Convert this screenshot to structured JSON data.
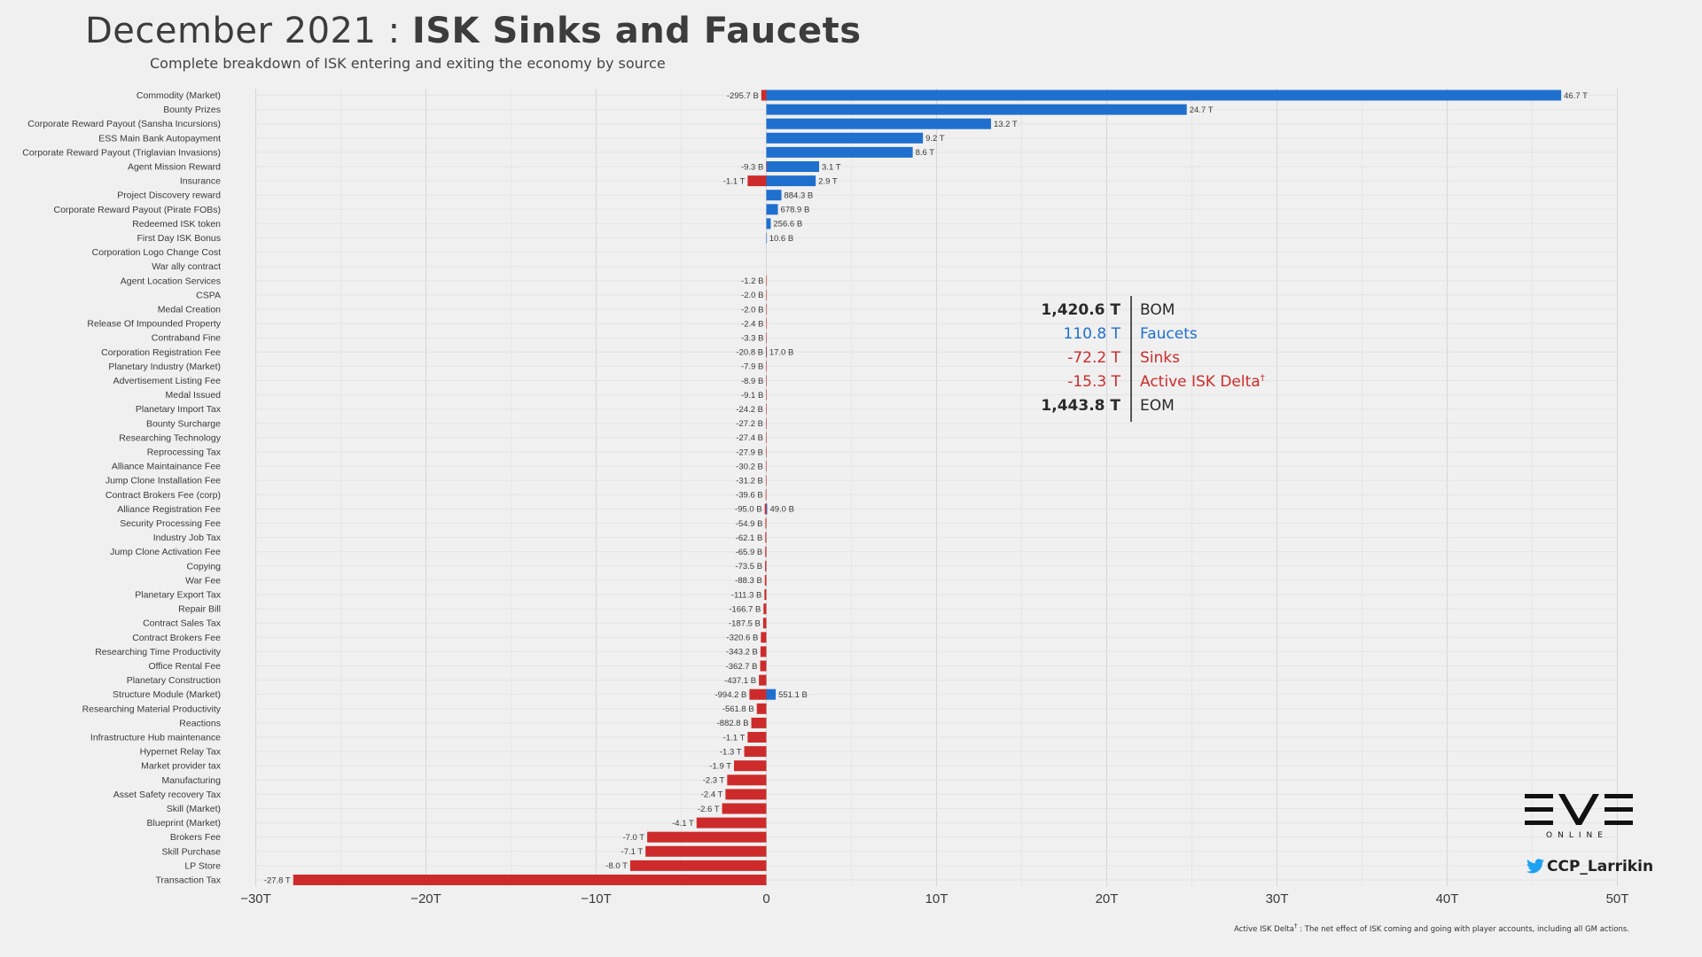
{
  "title": {
    "prefix": "December 2021 : ",
    "bold": "ISK Sinks and Faucets"
  },
  "subtitle": "Complete breakdown of ISK entering and exiting the economy by source",
  "colors": {
    "faucet": "#1f6fcf",
    "sink": "#cd2b2b",
    "text": "#3a3a3a",
    "grid": "#dcdcdc",
    "background": "#f0f0f0"
  },
  "chart_data": {
    "type": "bar",
    "orientation": "horizontal",
    "title": "December 2021 : ISK Sinks and Faucets",
    "subtitle": "Complete breakdown of ISK entering and exiting the economy by source",
    "xlabel": "",
    "ylabel": "",
    "xlim": [
      -30,
      50
    ],
    "units": "T ISK",
    "x_ticks": [
      -30,
      -20,
      -10,
      0,
      10,
      20,
      30,
      40,
      50
    ],
    "x_tick_labels": [
      "−30T",
      "−20T",
      "−10T",
      "0",
      "10T",
      "20T",
      "30T",
      "40T",
      "50T"
    ],
    "categories": [
      "Commodity (Market)",
      "Bounty Prizes",
      "Corporate Reward Payout (Sansha Incursions)",
      "ESS Main Bank Autopayment",
      "Corporate Reward Payout (Triglavian Invasions)",
      "Agent Mission Reward",
      "Insurance",
      "Project Discovery reward",
      "Corporate Reward Payout (Pirate FOBs)",
      "Redeemed ISK token",
      "First Day ISK Bonus",
      "Corporation Logo Change Cost",
      "War ally contract",
      "Agent Location Services",
      "CSPA",
      "Medal Creation",
      "Release Of Impounded Property",
      "Contraband Fine",
      "Corporation Registration Fee",
      "Planetary Industry (Market)",
      "Advertisement Listing Fee",
      "Medal Issued",
      "Planetary Import Tax",
      "Bounty Surcharge",
      "Researching Technology",
      "Reprocessing Tax",
      "Alliance Maintainance Fee",
      "Jump Clone Installation Fee",
      "Contract Brokers Fee (corp)",
      "Alliance Registration Fee",
      "Security Processing Fee",
      "Industry Job Tax",
      "Jump Clone Activation Fee",
      "Copying",
      "War Fee",
      "Planetary Export Tax",
      "Repair Bill",
      "Contract Sales Tax",
      "Contract Brokers Fee",
      "Researching Time Productivity",
      "Office Rental Fee",
      "Planetary Construction",
      "Structure Module (Market)",
      "Researching Material Productivity",
      "Reactions",
      "Infrastructure Hub maintenance",
      "Hypernet Relay Tax",
      "Market provider tax",
      "Manufacturing",
      "Asset Safety recovery Tax",
      "Skill (Market)",
      "Blueprint (Market)",
      "Brokers Fee",
      "Skill Purchase",
      "LP Store",
      "Transaction Tax"
    ],
    "series": [
      {
        "name": "Faucets",
        "color": "#1f6fcf",
        "values": [
          46.7,
          24.7,
          13.2,
          9.2,
          8.6,
          3.1,
          2.9,
          0.8843,
          0.6789,
          0.2566,
          0.0106,
          null,
          null,
          null,
          null,
          null,
          null,
          null,
          0.017,
          null,
          null,
          null,
          null,
          null,
          null,
          null,
          null,
          null,
          null,
          0.049,
          null,
          null,
          null,
          null,
          null,
          null,
          null,
          null,
          null,
          null,
          null,
          null,
          0.5511,
          null,
          null,
          null,
          null,
          null,
          null,
          null,
          null,
          null,
          null,
          null,
          null,
          null
        ],
        "labels": [
          "46.7 T",
          "24.7 T",
          "13.2 T",
          "9.2 T",
          "8.6 T",
          "3.1 T",
          "2.9 T",
          "884.3 B",
          "678.9 B",
          "256.6 B",
          "10.6 B",
          "",
          "",
          "",
          "",
          "",
          "",
          "",
          "17.0 B",
          "",
          "",
          "",
          "",
          "",
          "",
          "",
          "",
          "",
          "",
          "49.0 B",
          "",
          "",
          "",
          "",
          "",
          "",
          "",
          "",
          "",
          "",
          "",
          "",
          "551.1 B",
          "",
          "",
          "",
          "",
          "",
          "",
          "",
          "",
          "",
          "",
          "",
          "",
          ""
        ]
      },
      {
        "name": "Sinks",
        "color": "#cd2b2b",
        "values": [
          -0.2957,
          null,
          null,
          null,
          null,
          -0.0093,
          -1.1,
          null,
          null,
          null,
          null,
          null,
          null,
          -0.0012,
          -0.002,
          -0.002,
          -0.0024,
          -0.0033,
          -0.0208,
          -0.0079,
          -0.0089,
          -0.0091,
          -0.0242,
          -0.0272,
          -0.0274,
          -0.0279,
          -0.0302,
          -0.0312,
          -0.0396,
          -0.095,
          -0.0549,
          -0.0621,
          -0.0659,
          -0.0735,
          -0.0883,
          -0.1113,
          -0.1667,
          -0.1875,
          -0.3206,
          -0.3432,
          -0.3627,
          -0.4371,
          -0.9942,
          -0.5618,
          -0.8828,
          -1.1,
          -1.3,
          -1.9,
          -2.3,
          -2.4,
          -2.6,
          -4.1,
          -7.0,
          -7.1,
          -8.0,
          -27.8
        ],
        "labels": [
          "-295.7 B",
          "",
          "",
          "",
          "",
          "-9.3 B",
          "-1.1 T",
          "",
          "",
          "",
          "",
          "",
          "",
          "-1.2 B",
          "-2.0 B",
          "-2.0 B",
          "-2.4 B",
          "-3.3 B",
          "-20.8 B",
          "-7.9 B",
          "-8.9 B",
          "-9.1 B",
          "-24.2 B",
          "-27.2 B",
          "-27.4 B",
          "-27.9 B",
          "-30.2 B",
          "-31.2 B",
          "-39.6 B",
          "-95.0 B",
          "-54.9 B",
          "-62.1 B",
          "-65.9 B",
          "-73.5 B",
          "-88.3 B",
          "-111.3 B",
          "-166.7 B",
          "-187.5 B",
          "-320.6 B",
          "-343.2 B",
          "-362.7 B",
          "-437.1 B",
          "-994.2 B",
          "-561.8 B",
          "-882.8 B",
          "-1.1 T",
          "-1.3 T",
          "-1.9 T",
          "-2.3 T",
          "-2.4 T",
          "-2.6 T",
          "-4.1 T",
          "-7.0 T",
          "-7.1 T",
          "-8.0 T",
          "-27.8 T"
        ]
      }
    ],
    "grid": true
  },
  "summary": [
    {
      "value": "1,420.6 T",
      "label": "BOM",
      "color": "#2a2a2a",
      "bold": true
    },
    {
      "value": "110.8 T",
      "label": "Faucets",
      "color": "#1f6fcf",
      "bold": false
    },
    {
      "value": "-72.2 T",
      "label": "Sinks",
      "color": "#cd2b2b",
      "bold": false
    },
    {
      "value": "-15.3 T",
      "label": "Active ISK Delta",
      "sup": "†",
      "color": "#cd2b2b",
      "bold": false
    },
    {
      "value": "1,443.8 T",
      "label": "EOM",
      "color": "#2a2a2a",
      "bold": true
    }
  ],
  "logo": {
    "word": "EVE",
    "tagline": "ONLINE",
    "twitter_handle": "CCP_Larrikin"
  },
  "footnote": {
    "term": "Active ISK Delta",
    "sup": "†",
    "text": " : The net effect of ISK coming and going with player accounts, including all GM actions."
  }
}
